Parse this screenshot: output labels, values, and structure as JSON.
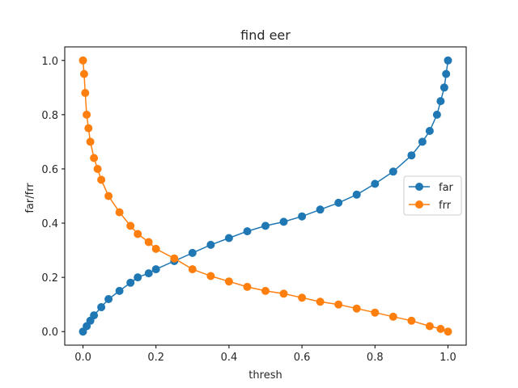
{
  "chart_data": {
    "type": "line",
    "title": "find eer",
    "xlabel": "thresh",
    "ylabel": "far/frr",
    "xlim": [
      -0.05,
      1.05
    ],
    "ylim": [
      -0.05,
      1.05
    ],
    "xticks": [
      0.0,
      0.2,
      0.4,
      0.6,
      0.8,
      1.0
    ],
    "yticks": [
      0.0,
      0.2,
      0.4,
      0.6,
      0.8,
      1.0
    ],
    "xtick_labels": [
      "0.0",
      "0.2",
      "0.4",
      "0.6",
      "0.8",
      "1.0"
    ],
    "ytick_labels": [
      "0.0",
      "0.2",
      "0.4",
      "0.6",
      "0.8",
      "1.0"
    ],
    "grid": false,
    "legend_position": "center-right",
    "series": [
      {
        "name": "far",
        "color": "#1f77b4",
        "marker": "circle",
        "x": [
          0.0,
          0.01,
          0.02,
          0.03,
          0.05,
          0.07,
          0.1,
          0.13,
          0.15,
          0.18,
          0.2,
          0.25,
          0.3,
          0.35,
          0.4,
          0.45,
          0.5,
          0.55,
          0.6,
          0.65,
          0.7,
          0.75,
          0.8,
          0.85,
          0.9,
          0.93,
          0.95,
          0.97,
          0.98,
          0.99,
          0.995,
          1.0
        ],
        "y": [
          0.0,
          0.02,
          0.04,
          0.06,
          0.09,
          0.12,
          0.15,
          0.18,
          0.2,
          0.215,
          0.23,
          0.26,
          0.29,
          0.32,
          0.345,
          0.37,
          0.39,
          0.405,
          0.425,
          0.45,
          0.475,
          0.505,
          0.545,
          0.59,
          0.65,
          0.7,
          0.74,
          0.8,
          0.85,
          0.9,
          0.95,
          1.0
        ]
      },
      {
        "name": "frr",
        "color": "#ff7f0e",
        "marker": "circle",
        "x": [
          0.0,
          0.003,
          0.006,
          0.01,
          0.015,
          0.02,
          0.03,
          0.04,
          0.05,
          0.07,
          0.1,
          0.13,
          0.15,
          0.18,
          0.2,
          0.25,
          0.3,
          0.35,
          0.4,
          0.45,
          0.5,
          0.55,
          0.6,
          0.65,
          0.7,
          0.75,
          0.8,
          0.85,
          0.9,
          0.95,
          0.98,
          1.0
        ],
        "y": [
          1.0,
          0.95,
          0.88,
          0.8,
          0.75,
          0.7,
          0.64,
          0.6,
          0.56,
          0.5,
          0.44,
          0.39,
          0.36,
          0.33,
          0.305,
          0.27,
          0.23,
          0.205,
          0.185,
          0.165,
          0.15,
          0.14,
          0.125,
          0.11,
          0.1,
          0.085,
          0.07,
          0.055,
          0.04,
          0.02,
          0.01,
          0.0
        ]
      }
    ]
  }
}
